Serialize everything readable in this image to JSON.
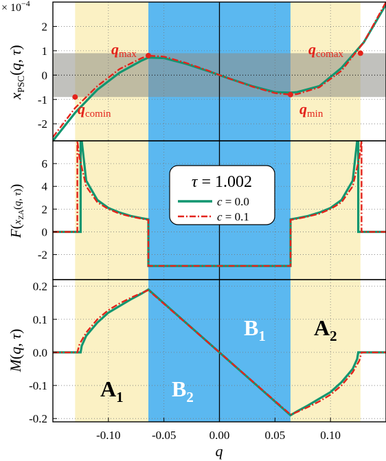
{
  "colors": {
    "yellow_band": "#fbf1c4",
    "blue_band": "#5bb8f0",
    "gray_band": "#8e8e86",
    "series_c0": "#129670",
    "series_c01": "#e3231b",
    "label_red": "#e3231b",
    "label_white": "#ffffff"
  },
  "chart_data": [
    {
      "type": "line",
      "panel": "top",
      "ylabel": "x_PSC(q, τ)",
      "yscale_label": "× 10^−4",
      "ylim": [
        -2.7,
        3.0
      ],
      "xlim": [
        -0.15,
        0.15
      ],
      "yticks": [
        "2",
        "1",
        "0",
        "-1",
        "-2"
      ],
      "grid": true,
      "series": [
        {
          "name": "c = 0.0",
          "x": [
            -0.15,
            -0.13,
            -0.11,
            -0.09,
            -0.07,
            -0.064,
            -0.05,
            -0.03,
            -0.01,
            0,
            0.01,
            0.03,
            0.05,
            0.064,
            0.07,
            0.09,
            0.11,
            0.13,
            0.15
          ],
          "y": [
            -2.7,
            -1.55,
            -0.6,
            0.1,
            0.6,
            0.72,
            0.7,
            0.46,
            0.16,
            0,
            -0.16,
            -0.46,
            -0.7,
            -0.72,
            -0.7,
            -0.45,
            0.3,
            1.35,
            2.9
          ]
        },
        {
          "name": "c = 0.1",
          "x": [
            -0.15,
            -0.13,
            -0.11,
            -0.09,
            -0.07,
            -0.064,
            -0.05,
            -0.03,
            -0.01,
            0,
            0.01,
            0.03,
            0.05,
            0.064,
            0.07,
            0.09,
            0.11,
            0.13,
            0.15
          ],
          "y": [
            -2.55,
            -1.35,
            -0.45,
            0.25,
            0.7,
            0.8,
            0.76,
            0.5,
            0.18,
            0,
            -0.16,
            -0.48,
            -0.74,
            -0.8,
            -0.78,
            -0.5,
            0.18,
            1.35,
            3.0
          ]
        }
      ],
      "annotations": [
        {
          "text": "q",
          "sub": "max",
          "x": -0.064,
          "y": 0.8
        },
        {
          "text": "q",
          "sub": "min",
          "x": 0.064,
          "y": -0.8
        },
        {
          "text": "q",
          "sub": "comin",
          "x": -0.13,
          "y": -0.9
        },
        {
          "text": "q",
          "sub": "comax",
          "x": 0.127,
          "y": 0.9
        }
      ]
    },
    {
      "type": "line",
      "panel": "middle",
      "ylabel": "F(x_ZA(q, τ))",
      "ylim": [
        -4.2,
        8.0
      ],
      "xlim": [
        -0.15,
        0.15
      ],
      "yticks": [
        "6",
        "4",
        "2",
        "0",
        "-2"
      ],
      "grid": true,
      "legend": {
        "title": "τ = 1.002",
        "entries": [
          "c = 0.0",
          "c = 0.1"
        ],
        "placement": "center-top"
      },
      "series": [
        {
          "name": "c = 0.0",
          "x": [
            -0.15,
            -0.125,
            -0.125,
            -0.124,
            -0.12,
            -0.11,
            -0.1,
            -0.09,
            -0.08,
            -0.07,
            -0.064,
            -0.064,
            0.064,
            0.064,
            0.07,
            0.08,
            0.09,
            0.1,
            0.11,
            0.12,
            0.124,
            0.125,
            0.125,
            0.15
          ],
          "y": [
            0,
            0,
            8,
            8,
            4.5,
            2.8,
            2.1,
            1.7,
            1.4,
            1.2,
            1.1,
            -3,
            -3,
            1.1,
            1.2,
            1.4,
            1.7,
            2.1,
            2.8,
            4.5,
            8,
            8,
            0,
            0
          ]
        },
        {
          "name": "c = 0.1",
          "x": [
            -0.15,
            -0.128,
            -0.128,
            -0.126,
            -0.12,
            -0.11,
            -0.1,
            -0.09,
            -0.08,
            -0.07,
            -0.064,
            -0.064,
            0.064,
            0.064,
            0.07,
            0.08,
            0.09,
            0.1,
            0.11,
            0.12,
            0.126,
            0.128,
            0.128,
            0.15
          ],
          "y": [
            0,
            0,
            8,
            6.5,
            4.0,
            2.6,
            2.0,
            1.6,
            1.35,
            1.15,
            1.05,
            -3,
            -3,
            1.05,
            1.15,
            1.35,
            1.6,
            2.0,
            2.6,
            4.0,
            6.5,
            8,
            0,
            0
          ]
        }
      ]
    },
    {
      "type": "line",
      "panel": "bottom",
      "ylabel": "M(q, τ)",
      "xlabel": "q",
      "ylim": [
        -0.21,
        0.22
      ],
      "xlim": [
        -0.15,
        0.15
      ],
      "yticks": [
        "0.2",
        "0.1",
        "0.0",
        "-0.1",
        "-0.2"
      ],
      "xticks": [
        "-0.10",
        "-0.05",
        "0.00",
        "0.05",
        "0.10"
      ],
      "xtick_values": [
        -0.1,
        -0.05,
        0,
        0.05,
        0.1
      ],
      "grid": true,
      "series": [
        {
          "name": "c = 0.0",
          "x": [
            -0.15,
            -0.125,
            -0.124,
            -0.12,
            -0.11,
            -0.1,
            -0.09,
            -0.08,
            -0.07,
            -0.064,
            0.064,
            0.07,
            0.08,
            0.09,
            0.1,
            0.11,
            0.12,
            0.124,
            0.125,
            0.15
          ],
          "y": [
            0,
            0,
            0.02,
            0.05,
            0.09,
            0.12,
            0.14,
            0.16,
            0.178,
            0.19,
            -0.19,
            -0.178,
            -0.16,
            -0.14,
            -0.12,
            -0.09,
            -0.05,
            -0.02,
            0,
            0
          ]
        },
        {
          "name": "c = 0.1",
          "x": [
            -0.15,
            -0.128,
            -0.126,
            -0.12,
            -0.11,
            -0.1,
            -0.09,
            -0.08,
            -0.07,
            -0.064,
            0.064,
            0.07,
            0.08,
            0.09,
            0.1,
            0.11,
            0.12,
            0.126,
            0.128,
            0.15
          ],
          "y": [
            0,
            0,
            0.025,
            0.06,
            0.1,
            0.128,
            0.148,
            0.165,
            0.18,
            0.188,
            -0.188,
            -0.18,
            -0.165,
            -0.148,
            -0.128,
            -0.1,
            -0.06,
            -0.025,
            0,
            0
          ]
        }
      ],
      "region_labels": [
        {
          "text": "A",
          "sub": "1",
          "color": "black"
        },
        {
          "text": "B",
          "sub": "2",
          "color": "white"
        },
        {
          "text": "B",
          "sub": "1",
          "color": "white"
        },
        {
          "text": "A",
          "sub": "2",
          "color": "black"
        }
      ]
    }
  ],
  "bands": {
    "yellow_left": [
      -0.13,
      -0.064
    ],
    "blue": [
      -0.064,
      0.064
    ],
    "yellow_right": [
      0.064,
      0.127
    ],
    "gray_y": [
      -0.9,
      0.9
    ]
  }
}
